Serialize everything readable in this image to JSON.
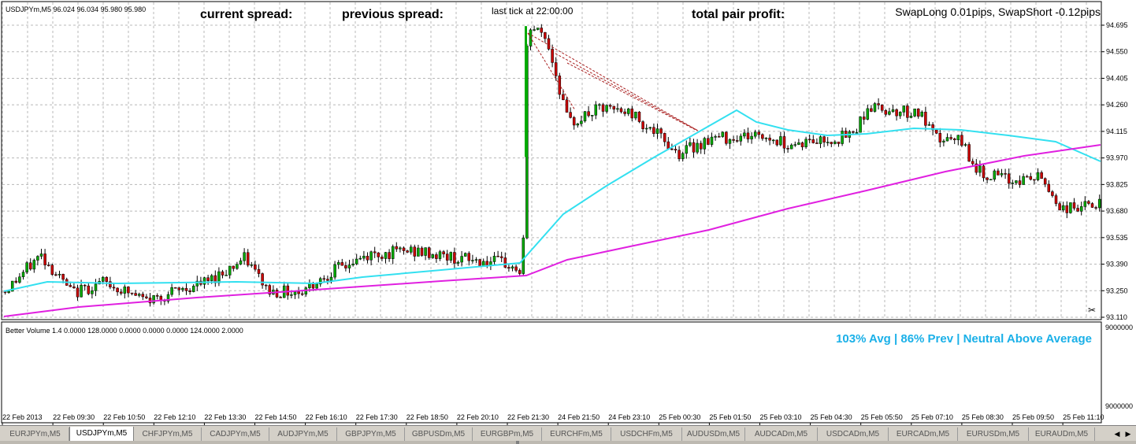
{
  "main_chart": {
    "symbol_info": "USDJPYm,M5  96.024 96.034 95.980 95.980",
    "current_spread_label": "current spread:",
    "previous_spread_label": "previous spread:",
    "last_tick_label": "last tick at 22:00:00",
    "total_profit_label": "total pair profit:",
    "swap_info": "SwapLong 0.01pips, SwapShort -0.12pips",
    "price_levels": [
      "94.695",
      "94.550",
      "94.405",
      "94.260",
      "94.115",
      "93.970",
      "93.825",
      "93.680",
      "93.535",
      "93.390",
      "93.250",
      "93.110"
    ],
    "price_range": [
      93.11,
      94.695
    ]
  },
  "volume_panel": {
    "info": "Better Volume 1.4 0.0000 128.0000 0.0000 0.0000 0.0000 124.0000 2.0000",
    "status": "103% Avg | 86% Prev | Neutral Above Average",
    "scale_top": "9000000",
    "scale_bottom": "9000000"
  },
  "time_labels": [
    "22 Feb 2013",
    "22 Feb 09:30",
    "22 Feb 10:50",
    "22 Feb 12:10",
    "22 Feb 13:30",
    "22 Feb 14:50",
    "22 Feb 16:10",
    "22 Feb 17:30",
    "22 Feb 18:50",
    "22 Feb 20:10",
    "22 Feb 21:30",
    "24 Feb 21:50",
    "24 Feb 23:10",
    "25 Feb 00:30",
    "25 Feb 01:50",
    "25 Feb 03:10",
    "25 Feb 04:30",
    "25 Feb 05:50",
    "25 Feb 07:10",
    "25 Feb 08:30",
    "25 Feb 09:50",
    "25 Feb 11:10"
  ],
  "tabs": [
    "EURJPYm,M5",
    "USDJPYm,M5",
    "CHFJPYm,M5",
    "CADJPYm,M5",
    "AUDJPYm,M5",
    "GBPJPYm,M5",
    "GBPUSDm,M5",
    "EURGBPm,M5",
    "EURCHFm,M5",
    "USDCHFm,M5",
    "AUDUSDm,M5",
    "AUDCADm,M5",
    "USDCADm,M5",
    "EURCADm,M5",
    "EURUSDm,M5",
    "EURAUDm,M5"
  ],
  "active_tab": "USDJPYm,M5",
  "colors": {
    "bull": "#00aa00",
    "bear": "#cc0000",
    "ma_fast": "#33e0f0",
    "ma_slow": "#e020e0",
    "status": "#1ab0e8",
    "grid": "#b8b8b8"
  }
}
